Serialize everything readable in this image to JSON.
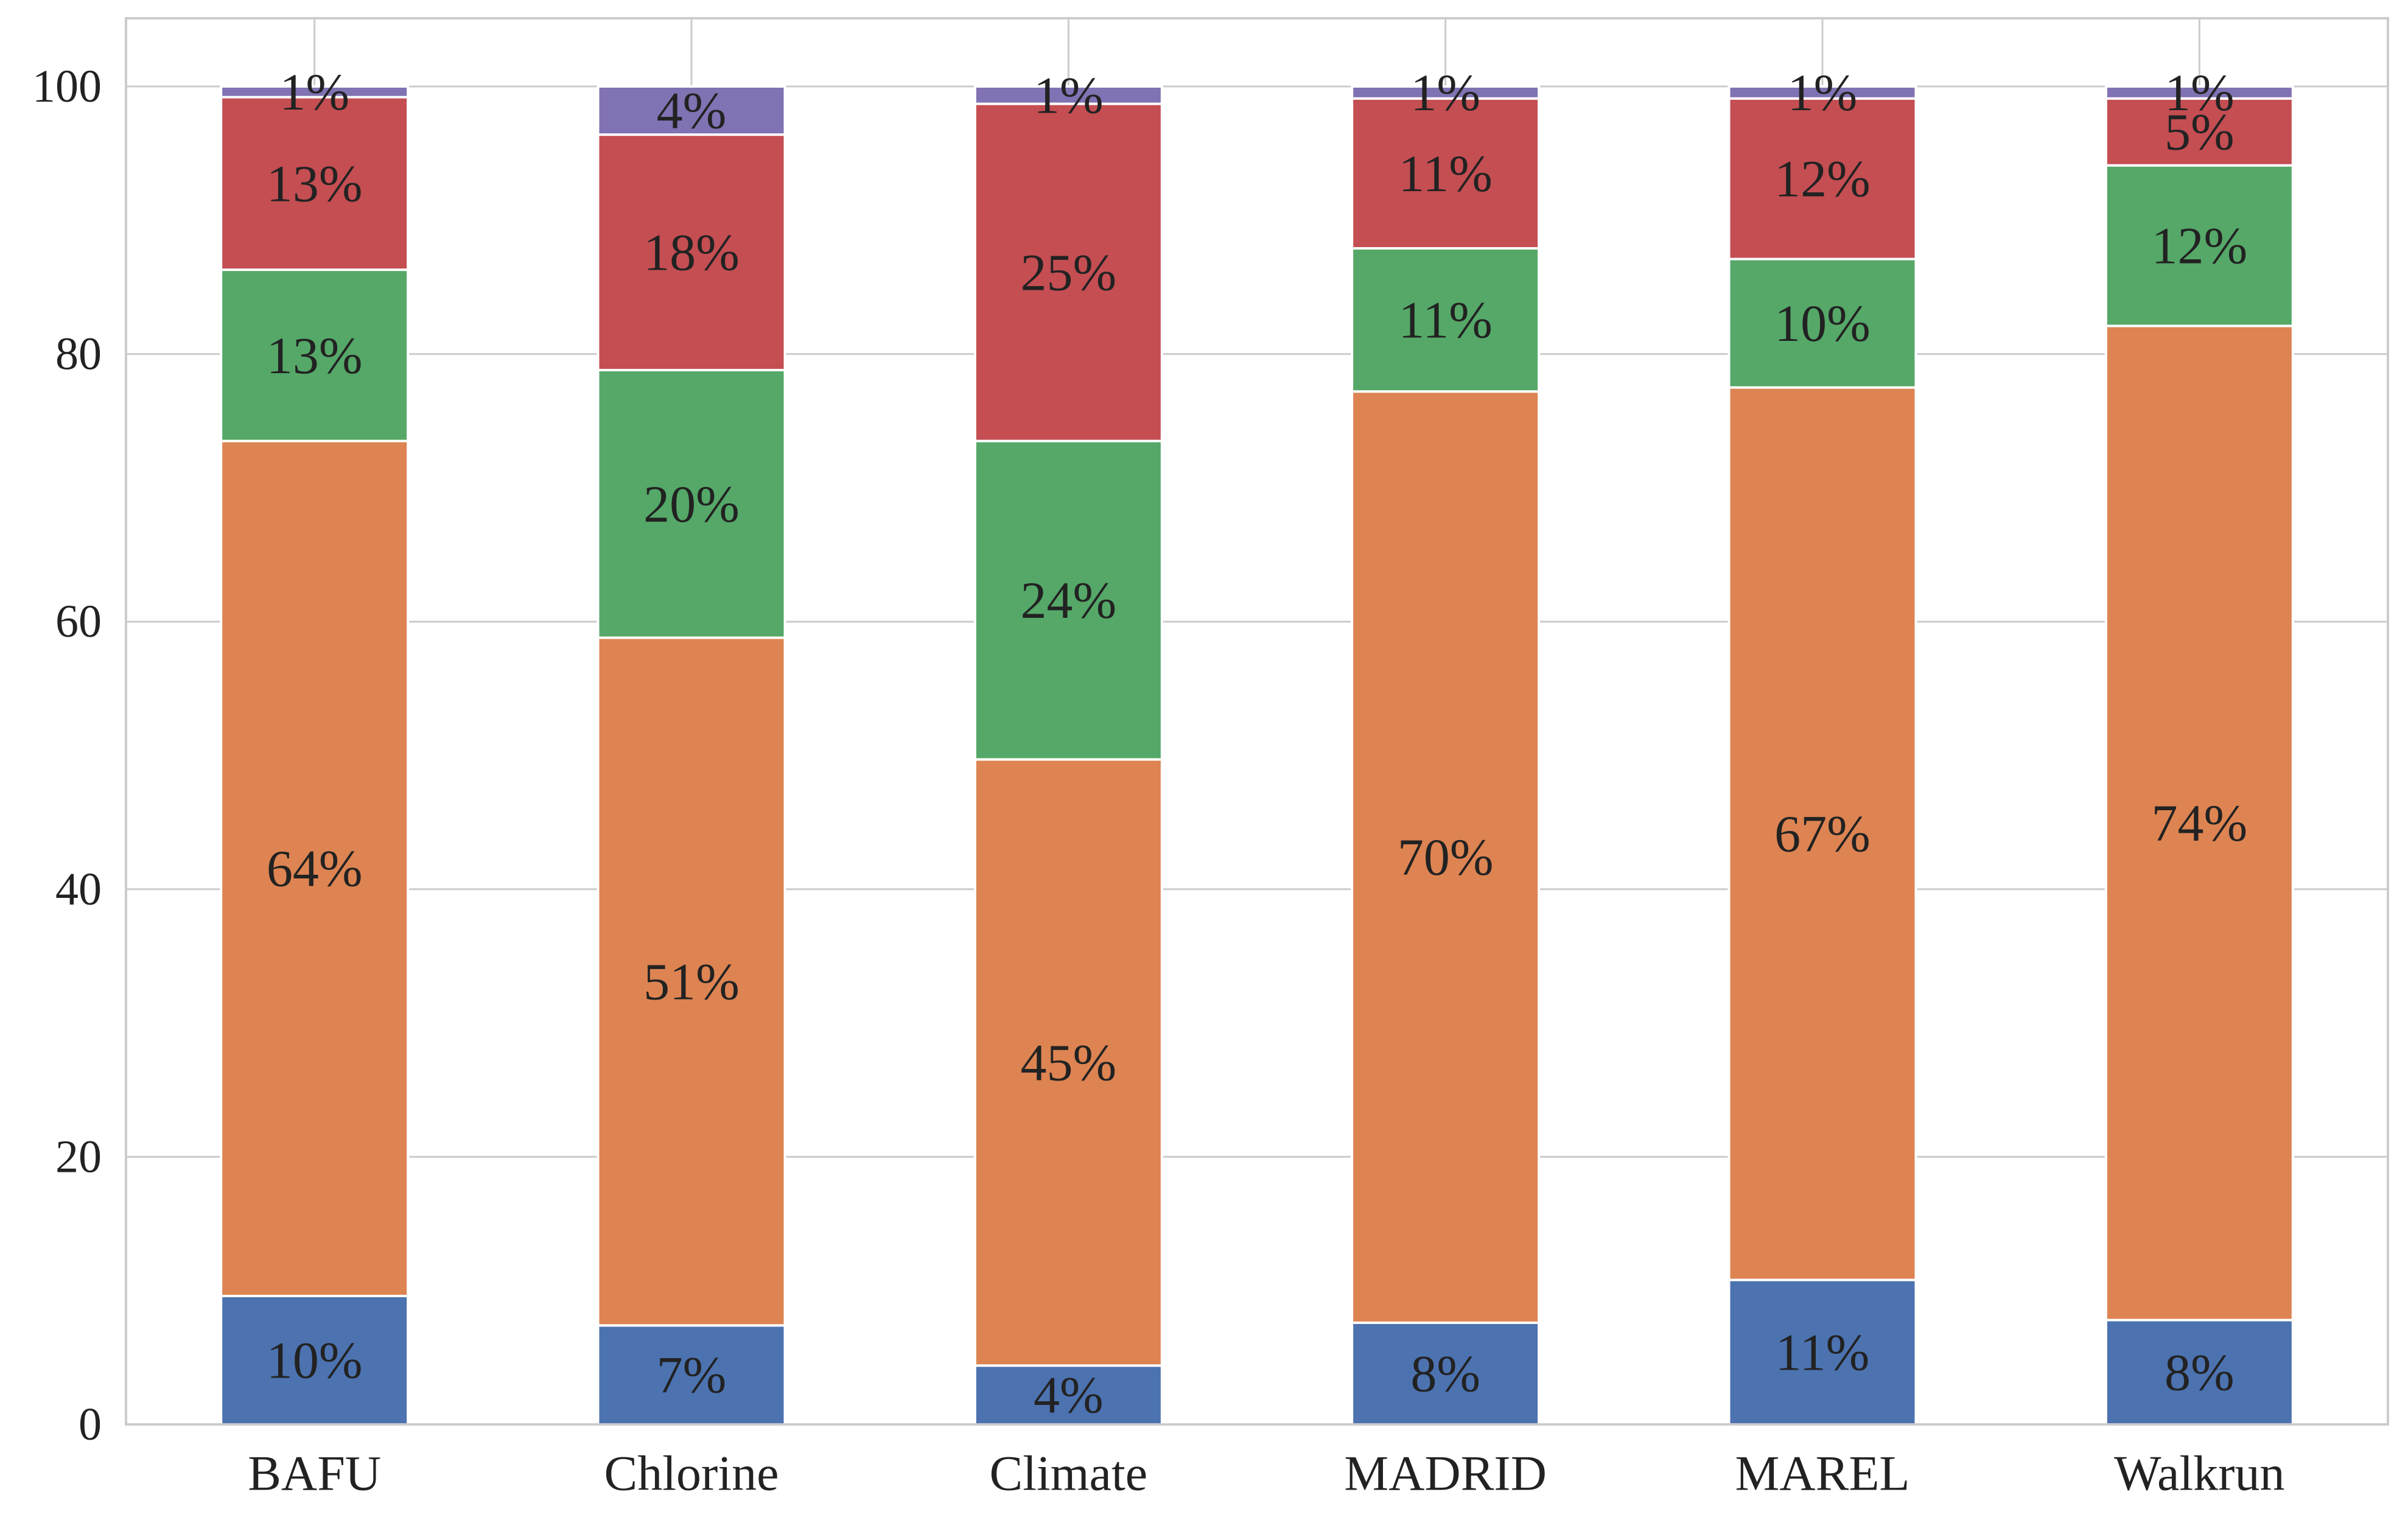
{
  "chart_data": {
    "type": "bar",
    "stacked": true,
    "title": "",
    "xlabel": "",
    "ylabel": "",
    "ylim": [
      0,
      100
    ],
    "yticks": [
      0,
      20,
      40,
      60,
      80,
      100
    ],
    "grid": true,
    "legend": "none",
    "categories": [
      "BAFU",
      "Chlorine",
      "Climate",
      "MADRID",
      "MAREL",
      "Walkrun"
    ],
    "series": [
      {
        "color": "#4c72b0",
        "values": [
          9.6,
          7.4,
          4.4,
          7.6,
          10.8,
          7.8
        ],
        "labels": [
          "10%",
          "7%",
          "4%",
          "8%",
          "11%",
          "8%"
        ]
      },
      {
        "color": "#dd8452",
        "values": [
          63.9,
          51.4,
          45.3,
          69.6,
          66.7,
          74.3
        ],
        "labels": [
          "64%",
          "51%",
          "45%",
          "70%",
          "67%",
          "74%"
        ]
      },
      {
        "color": "#55a868",
        "values": [
          12.8,
          20.0,
          23.8,
          10.7,
          9.6,
          12.0
        ],
        "labels": [
          "13%",
          "20%",
          "24%",
          "11%",
          "10%",
          "12%"
        ]
      },
      {
        "color": "#c44e52",
        "values": [
          12.9,
          17.6,
          25.2,
          11.2,
          12.0,
          5.0
        ],
        "labels": [
          "13%",
          "18%",
          "25%",
          "11%",
          "12%",
          "5%"
        ]
      },
      {
        "color": "#8172b3",
        "values": [
          0.8,
          3.6,
          1.3,
          0.9,
          0.9,
          0.9
        ],
        "labels": [
          "1%",
          "4%",
          "1%",
          "1%",
          "1%",
          "1%"
        ]
      }
    ]
  }
}
